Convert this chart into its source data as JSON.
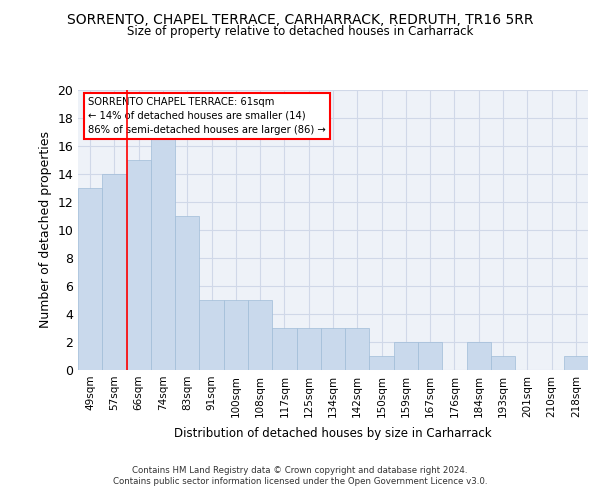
{
  "title": "SORRENTO, CHAPEL TERRACE, CARHARRACK, REDRUTH, TR16 5RR",
  "subtitle": "Size of property relative to detached houses in Carharrack",
  "xlabel": "Distribution of detached houses by size in Carharrack",
  "ylabel": "Number of detached properties",
  "bar_color": "#c9d9ec",
  "bar_edge_color": "#a0bcd8",
  "categories": [
    "49sqm",
    "57sqm",
    "66sqm",
    "74sqm",
    "83sqm",
    "91sqm",
    "100sqm",
    "108sqm",
    "117sqm",
    "125sqm",
    "134sqm",
    "142sqm",
    "150sqm",
    "159sqm",
    "167sqm",
    "176sqm",
    "184sqm",
    "193sqm",
    "201sqm",
    "210sqm",
    "218sqm"
  ],
  "values": [
    13,
    14,
    15,
    17,
    11,
    5,
    5,
    5,
    3,
    3,
    3,
    3,
    1,
    2,
    2,
    0,
    2,
    1,
    0,
    0,
    1
  ],
  "ylim": [
    0,
    20
  ],
  "yticks": [
    0,
    2,
    4,
    6,
    8,
    10,
    12,
    14,
    16,
    18,
    20
  ],
  "red_line_x": 1.5,
  "annotation_text": "SORRENTO CHAPEL TERRACE: 61sqm\n← 14% of detached houses are smaller (14)\n86% of semi-detached houses are larger (86) →",
  "footer_line1": "Contains HM Land Registry data © Crown copyright and database right 2024.",
  "footer_line2": "Contains public sector information licensed under the Open Government Licence v3.0.",
  "grid_color": "#d0d8e8",
  "background_color": "#eef2f8"
}
